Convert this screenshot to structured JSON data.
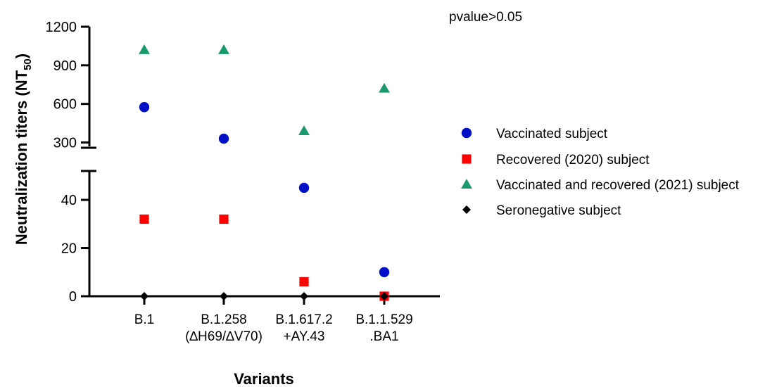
{
  "chart_data": {
    "type": "scatter",
    "annotation": "pvalue>0.05",
    "xlabel": "Variants",
    "ylabel": {
      "main": "Neutralization titers (NT",
      "subscript": "50",
      "close": ")"
    },
    "categories": [
      {
        "lines": [
          "B.1"
        ]
      },
      {
        "lines": [
          "B.1.258",
          "(∆H69/∆V70)"
        ]
      },
      {
        "lines": [
          "B.1.617.2",
          "+AY.43"
        ]
      },
      {
        "lines": [
          "B.1.1.529",
          ".BA1"
        ]
      }
    ],
    "y_axis": {
      "broken": true,
      "lower_segment": {
        "ylim": [
          0,
          52
        ],
        "ticks": [
          0,
          20,
          40
        ]
      },
      "upper_segment": {
        "ylim": [
          270,
          1200
        ],
        "ticks": [
          300,
          600,
          900,
          1200
        ]
      }
    },
    "series": [
      {
        "name": "Vaccinated subject",
        "marker": "circle",
        "color": "#0010c8",
        "values": [
          575,
          330,
          45,
          10
        ]
      },
      {
        "name": "Recovered (2020) subject",
        "marker": "square",
        "color": "#ff0000",
        "values": [
          32,
          32,
          6,
          0
        ]
      },
      {
        "name": "Vaccinated and recovered (2021) subject",
        "marker": "triangle",
        "color": "#1a9a6c",
        "values": [
          1020,
          1020,
          390,
          720
        ]
      },
      {
        "name": "Seronegative subject",
        "marker": "diamond",
        "color": "#000000",
        "values": [
          0,
          0,
          0,
          0
        ]
      }
    ],
    "legend_position": "right",
    "grid": false
  }
}
